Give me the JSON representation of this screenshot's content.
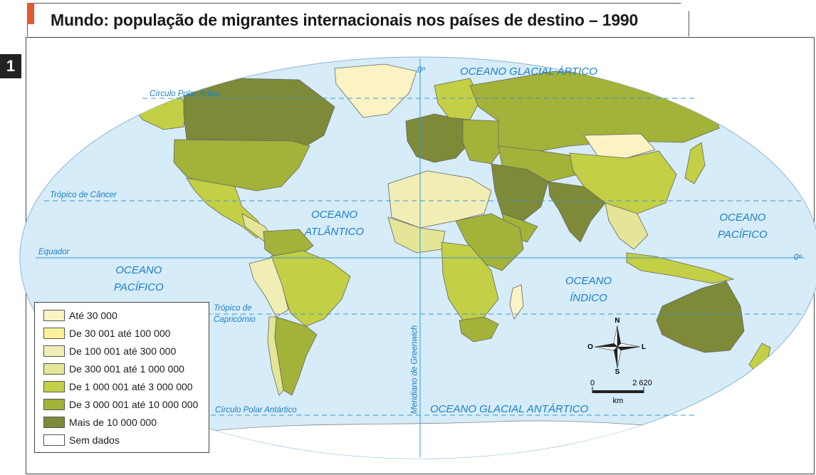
{
  "map": {
    "title": "Mundo: população de migrantes internacionais nos países de destino – 1990",
    "figure_number": "1",
    "oceans": {
      "artic": "OCEANO GLACIAL ÁRTICO",
      "atlantic": [
        "OCEANO",
        "ATLÂNTICO"
      ],
      "pacific_west": [
        "OCEANO",
        "PACÍFICO"
      ],
      "pacific_east": [
        "OCEANO",
        "PACÍFICO"
      ],
      "indian": [
        "OCEANO",
        "ÍNDICO"
      ],
      "antarctic": "OCEANO GLACIAL ANTÁRTICO"
    },
    "lines": {
      "arctic_circle": "Círculo Polar Ártico",
      "cancer": "Trópico de Câncer",
      "equator": "Equador",
      "capricorn": [
        "Trópico de",
        "Capricórnio"
      ],
      "antarctic_circle": "Círculo Polar Antártico",
      "greenwich": "Meridiano de Greenwich",
      "zero_top": "0º",
      "zero_right": "0º"
    },
    "compass": {
      "n": "N",
      "s": "S",
      "w": "O",
      "e": "L"
    },
    "scale": {
      "start": "0",
      "end": "2 620",
      "unit": "km"
    },
    "legend": [
      {
        "label": "Até 30 000",
        "color": "#fbf3c4"
      },
      {
        "label": "De 30 001 até 100 000",
        "color": "#fdf29a"
      },
      {
        "label": "De 100 001 até 300 000",
        "color": "#f1eeb5"
      },
      {
        "label": "De 300 001 até 1 000 000",
        "color": "#e4e597"
      },
      {
        "label": "De 1 000 001 até 3 000 000",
        "color": "#c3cf44"
      },
      {
        "label": "De 3 000 001 até 10 000 000",
        "color": "#a3b239"
      },
      {
        "label": "Mais de 10 000 000",
        "color": "#7e8a37"
      },
      {
        "label": "Sem dados",
        "color": "#ffffff"
      }
    ],
    "colors": {
      "ocean": "#d6ecf8",
      "grid_line": "#3a97d4",
      "label": "#1d7fc6",
      "accent": "#e05a2b"
    }
  }
}
